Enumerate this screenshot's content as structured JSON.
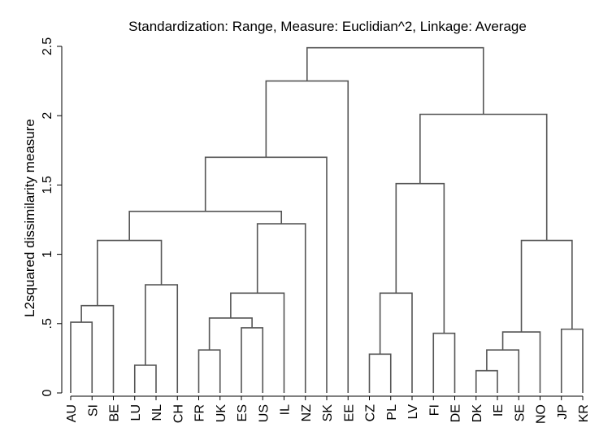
{
  "chart_data": {
    "type": "dendrogram",
    "title": "Standardization: Range, Measure: Euclidian^2, Linkage: Average",
    "ylabel": "L2squared dissimilarity measure",
    "xlabel": "",
    "ylim": [
      0,
      2.5
    ],
    "yticks": [
      0,
      0.5,
      1,
      1.5,
      2,
      2.5
    ],
    "ytick_labels": [
      "0",
      ".5",
      "1",
      "1.5",
      "2",
      "2.5"
    ],
    "leaves": [
      "AU",
      "SI",
      "BE",
      "LU",
      "NL",
      "CH",
      "FR",
      "UK",
      "ES",
      "US",
      "IL",
      "NZ",
      "SK",
      "EE",
      "CZ",
      "PL",
      "LV",
      "FI",
      "DE",
      "DK",
      "IE",
      "SE",
      "NO",
      "JP",
      "KR"
    ],
    "merges": [
      {
        "id": "m1",
        "left": "DK",
        "right": "IE",
        "height": 0.16
      },
      {
        "id": "m2",
        "left": "LU",
        "right": "NL",
        "height": 0.2
      },
      {
        "id": "m3",
        "left": "CZ",
        "right": "PL",
        "height": 0.28
      },
      {
        "id": "m4",
        "left": "m1",
        "right": "SE",
        "height": 0.31
      },
      {
        "id": "m5",
        "left": "FR",
        "right": "UK",
        "height": 0.31
      },
      {
        "id": "m6",
        "left": "FI",
        "right": "DE",
        "height": 0.43
      },
      {
        "id": "m7",
        "left": "m4",
        "right": "NO",
        "height": 0.44
      },
      {
        "id": "m8",
        "left": "JP",
        "right": "KR",
        "height": 0.46
      },
      {
        "id": "m9",
        "left": "ES",
        "right": "US",
        "height": 0.47
      },
      {
        "id": "m10",
        "left": "AU",
        "right": "SI",
        "height": 0.51
      },
      {
        "id": "m11",
        "left": "m5",
        "right": "m9",
        "height": 0.54
      },
      {
        "id": "m12",
        "left": "m10",
        "right": "BE",
        "height": 0.63
      },
      {
        "id": "m13",
        "left": "m3",
        "right": "LV",
        "height": 0.72
      },
      {
        "id": "m14",
        "left": "m11",
        "right": "IL",
        "height": 0.72
      },
      {
        "id": "m15",
        "left": "m2",
        "right": "CH",
        "height": 0.78
      },
      {
        "id": "m16",
        "left": "m7",
        "right": "m8",
        "height": 1.1
      },
      {
        "id": "m17",
        "left": "m12",
        "right": "m15",
        "height": 1.1
      },
      {
        "id": "m18",
        "left": "m14",
        "right": "NZ",
        "height": 1.22
      },
      {
        "id": "m19",
        "left": "m17",
        "right": "m18",
        "height": 1.31
      },
      {
        "id": "m20",
        "left": "m13",
        "right": "m6",
        "height": 1.51
      },
      {
        "id": "m21",
        "left": "m19",
        "right": "SK",
        "height": 1.7
      },
      {
        "id": "m22",
        "left": "m20",
        "right": "m16",
        "height": 2.01
      },
      {
        "id": "m23",
        "left": "m21",
        "right": "EE",
        "height": 2.25
      },
      {
        "id": "m24",
        "left": "m23",
        "right": "m22",
        "height": 2.49
      }
    ],
    "grid": false,
    "legend": "none"
  }
}
